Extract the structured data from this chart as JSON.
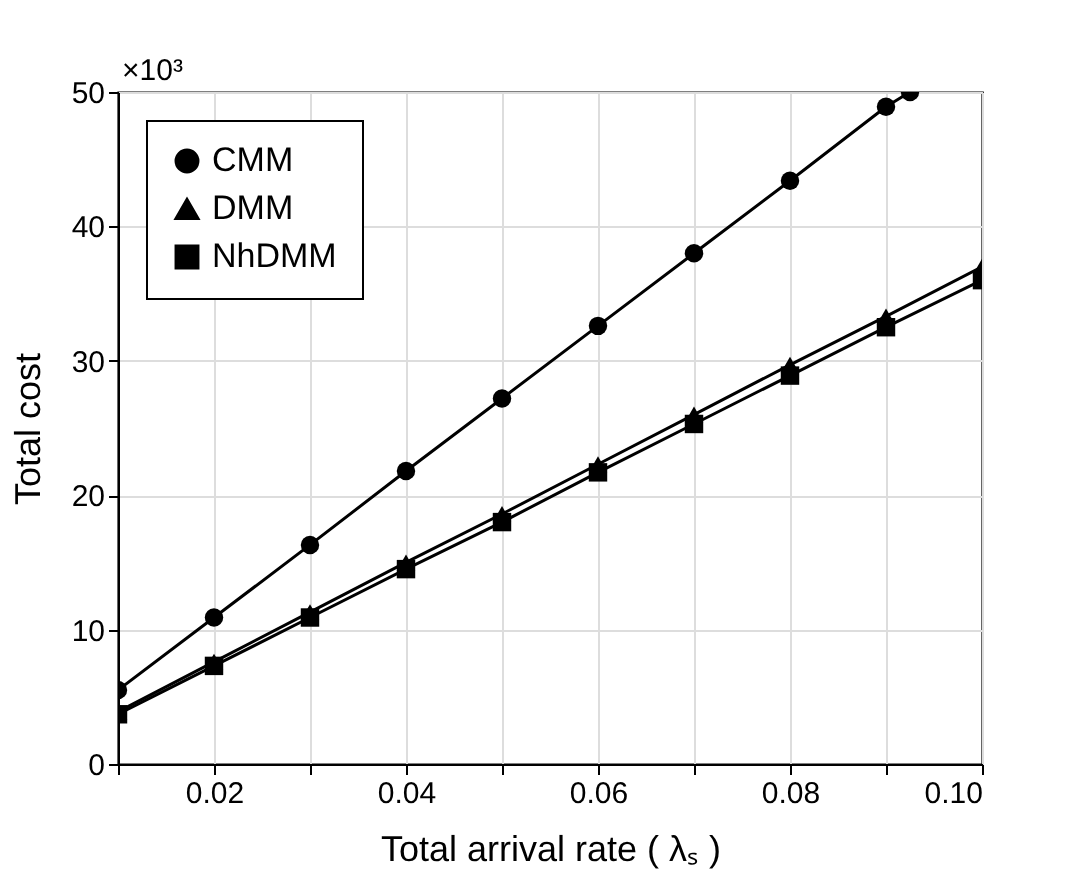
{
  "chart_data": {
    "type": "line",
    "xlabel": "Total arrival rate ( λₛ )",
    "ylabel": "Total cost",
    "annotations": [
      "×10³"
    ],
    "x": [
      0.01,
      0.02,
      0.03,
      0.04,
      0.05,
      0.06,
      0.07,
      0.08,
      0.09,
      0.1
    ],
    "series": [
      {
        "name": "CMM",
        "color": "#000000",
        "marker": "circle",
        "x": [
          0.01,
          0.02,
          0.03,
          0.04,
          0.05,
          0.06,
          0.07,
          0.08,
          0.09,
          0.0925
        ],
        "values": [
          5.5,
          10.9,
          16.3,
          21.8,
          27.2,
          32.6,
          38.0,
          43.4,
          48.9,
          50
        ]
      },
      {
        "name": "DMM",
        "color": "#000000",
        "marker": "triangle",
        "values": [
          3.9,
          7.6,
          11.3,
          15.0,
          18.6,
          22.3,
          26.0,
          29.7,
          33.3,
          37.0
        ]
      },
      {
        "name": "NhDMM",
        "color": "#000000",
        "marker": "square",
        "values": [
          3.7,
          7.3,
          10.9,
          14.5,
          18.0,
          21.7,
          25.3,
          28.9,
          32.5,
          36.0
        ]
      }
    ],
    "xlim": [
      0.01,
      0.1
    ],
    "xticks": [
      {
        "value": 0.01,
        "label": null
      },
      0.02,
      {
        "value": 0.03,
        "label": null
      },
      0.04,
      {
        "value": 0.05,
        "label": null
      },
      0.06,
      {
        "value": 0.07,
        "label": null
      },
      0.08,
      {
        "value": 0.09,
        "label": null
      },
      {
        "value": 0.1,
        "label": "0.10"
      }
    ],
    "ylim": [
      0,
      50
    ],
    "yticks": [
      0,
      10,
      20,
      30,
      40,
      50
    ],
    "grid": true,
    "legend": "top left",
    "line_style": "solid"
  }
}
